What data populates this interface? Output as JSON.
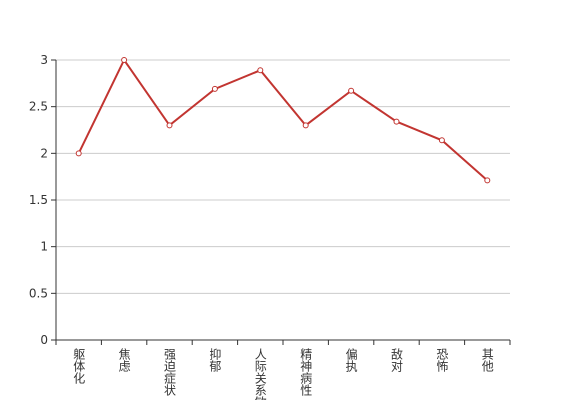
{
  "chart_data": {
    "type": "line",
    "categories": [
      "躯体化",
      "焦虑",
      "强迫症状",
      "抑郁",
      "人际关系敏感",
      "精神病性",
      "偏执",
      "敌对",
      "恐怖",
      "其他"
    ],
    "series": [
      {
        "color": "#c23531",
        "values": [
          2.0,
          3.0,
          2.3,
          2.69,
          2.89,
          2.3,
          2.67,
          2.34,
          2.14,
          1.71
        ]
      }
    ],
    "ylim": [
      0,
      3
    ],
    "yticks": [
      0,
      0.5,
      1,
      1.5,
      2,
      2.5,
      3
    ],
    "grid": true
  }
}
